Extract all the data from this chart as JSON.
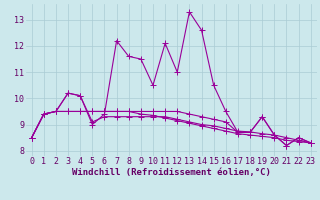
{
  "xlabel": "Windchill (Refroidissement éolien,°C)",
  "background_color": "#cce8ec",
  "grid_color": "#aaccd4",
  "line_color": "#990099",
  "xlim": [
    -0.5,
    23.5
  ],
  "ylim": [
    7.8,
    13.6
  ],
  "yticks": [
    8,
    9,
    10,
    11,
    12,
    13
  ],
  "xticks": [
    0,
    1,
    2,
    3,
    4,
    5,
    6,
    7,
    8,
    9,
    10,
    11,
    12,
    13,
    14,
    15,
    16,
    17,
    18,
    19,
    20,
    21,
    22,
    23
  ],
  "series": [
    [
      8.5,
      9.4,
      9.5,
      10.2,
      10.1,
      9.0,
      9.4,
      12.2,
      11.6,
      11.5,
      10.5,
      12.1,
      11.0,
      13.3,
      12.6,
      10.5,
      9.5,
      8.7,
      8.7,
      9.3,
      8.6,
      8.2,
      8.5,
      8.3
    ],
    [
      8.5,
      9.4,
      9.5,
      10.2,
      10.1,
      9.1,
      9.3,
      9.3,
      9.3,
      9.3,
      9.3,
      9.3,
      9.2,
      9.1,
      9.0,
      8.95,
      8.85,
      8.75,
      8.72,
      8.65,
      8.6,
      8.5,
      8.4,
      8.3
    ],
    [
      8.5,
      9.4,
      9.5,
      9.5,
      9.5,
      9.5,
      9.5,
      9.5,
      9.5,
      9.4,
      9.35,
      9.25,
      9.15,
      9.05,
      8.95,
      8.85,
      8.75,
      8.65,
      8.6,
      8.55,
      8.5,
      8.4,
      8.35,
      8.3
    ],
    [
      8.5,
      9.4,
      9.5,
      9.5,
      9.5,
      9.5,
      9.5,
      9.5,
      9.5,
      9.5,
      9.5,
      9.5,
      9.5,
      9.4,
      9.3,
      9.2,
      9.1,
      8.7,
      8.7,
      9.3,
      8.6,
      8.2,
      8.5,
      8.3
    ]
  ],
  "marker": "+",
  "markersize": 4,
  "linewidth": 0.8,
  "xlabel_fontsize": 6.5,
  "tick_fontsize": 6,
  "label_color": "#660066"
}
